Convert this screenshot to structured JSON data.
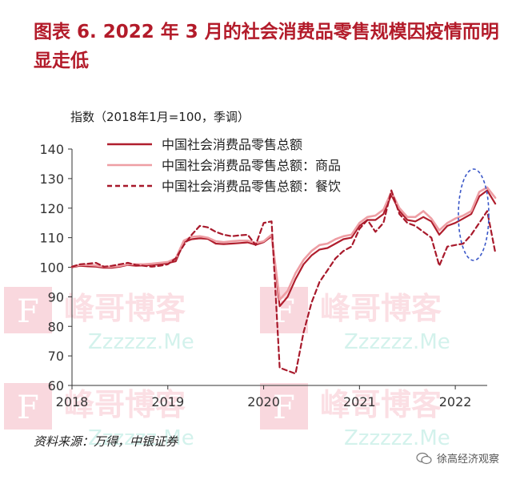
{
  "title": "图表 6.  2022 年 3 月的社会消费品零售规模因疫情而明显走低",
  "source": "资料来源：万得，中银证券",
  "footer": {
    "account": "徐高经济观察",
    "icon": "wechat-icon"
  },
  "colors": {
    "title": "#b31b2a",
    "total": "#b01e2d",
    "goods": "#ee9ea4",
    "catering": "#a8192b",
    "highlight": "#3a57c8"
  },
  "watermark": {
    "text": "峰哥博客",
    "sub": "Zzzzzz.Me",
    "letter": "F"
  },
  "chart_data": {
    "type": "line",
    "ylabel": "指数（2018年1月=100，季调）",
    "ylim": [
      60,
      140
    ],
    "yticks": [
      60,
      70,
      80,
      90,
      100,
      110,
      120,
      130,
      140
    ],
    "xlim": [
      2018.0,
      2022.333
    ],
    "xticks": [
      {
        "x": 2018.0,
        "label": "2018"
      },
      {
        "x": 2019.0,
        "label": "2019"
      },
      {
        "x": 2020.0,
        "label": "2020"
      },
      {
        "x": 2021.0,
        "label": "2021"
      },
      {
        "x": 2022.0,
        "label": "2022"
      }
    ],
    "grid": false,
    "legend_position": "top",
    "highlight": "dashed ellipse around 2022 Jan–Mar values",
    "series": [
      {
        "name": "中国社会消费品零售总额",
        "style": "solid",
        "color": "#b01e2d",
        "points": [
          [
            2018.0,
            100
          ],
          [
            2018.083,
            100.5
          ],
          [
            2018.167,
            100.3
          ],
          [
            2018.25,
            100.2
          ],
          [
            2018.333,
            99.8
          ],
          [
            2018.417,
            99.8
          ],
          [
            2018.5,
            100.2
          ],
          [
            2018.583,
            100.8
          ],
          [
            2018.667,
            100.5
          ],
          [
            2018.75,
            100.6
          ],
          [
            2018.833,
            100.8
          ],
          [
            2018.917,
            101
          ],
          [
            2019.0,
            101.4
          ],
          [
            2019.083,
            102
          ],
          [
            2019.167,
            108.5
          ],
          [
            2019.25,
            109.5
          ],
          [
            2019.333,
            109.8
          ],
          [
            2019.417,
            109.6
          ],
          [
            2019.5,
            108
          ],
          [
            2019.583,
            107.8
          ],
          [
            2019.667,
            108
          ],
          [
            2019.75,
            108.2
          ],
          [
            2019.833,
            108.4
          ],
          [
            2019.917,
            107.6
          ],
          [
            2020.0,
            108.5
          ],
          [
            2020.083,
            110.5
          ],
          [
            2020.167,
            86.8
          ],
          [
            2020.25,
            90
          ],
          [
            2020.333,
            96
          ],
          [
            2020.417,
            101
          ],
          [
            2020.5,
            104
          ],
          [
            2020.583,
            106
          ],
          [
            2020.667,
            106.5
          ],
          [
            2020.75,
            108
          ],
          [
            2020.833,
            109.5
          ],
          [
            2020.917,
            110
          ],
          [
            2021.0,
            114
          ],
          [
            2021.083,
            116
          ],
          [
            2021.167,
            116
          ],
          [
            2021.25,
            118
          ],
          [
            2021.333,
            124.5
          ],
          [
            2021.417,
            119
          ],
          [
            2021.5,
            116
          ],
          [
            2021.583,
            115.5
          ],
          [
            2021.667,
            117
          ],
          [
            2021.75,
            115.5
          ],
          [
            2021.833,
            111
          ],
          [
            2021.917,
            114
          ],
          [
            2022.0,
            115
          ],
          [
            2022.083,
            116.5
          ],
          [
            2022.167,
            118
          ],
          [
            2022.25,
            124
          ],
          [
            2022.333,
            126
          ],
          [
            2022.417,
            121.5
          ]
        ]
      },
      {
        "name": "中国社会消费品零售总额：商品",
        "style": "solid",
        "color": "#ee9ea4",
        "points": [
          [
            2018.0,
            100.2
          ],
          [
            2018.083,
            100.8
          ],
          [
            2018.167,
            100.8
          ],
          [
            2018.25,
            100.6
          ],
          [
            2018.333,
            100.2
          ],
          [
            2018.417,
            100.2
          ],
          [
            2018.5,
            100.5
          ],
          [
            2018.583,
            101
          ],
          [
            2018.667,
            101
          ],
          [
            2018.75,
            101
          ],
          [
            2018.833,
            101.2
          ],
          [
            2018.917,
            101.5
          ],
          [
            2019.0,
            101.8
          ],
          [
            2019.083,
            103
          ],
          [
            2019.167,
            109
          ],
          [
            2019.25,
            110.3
          ],
          [
            2019.333,
            110.5
          ],
          [
            2019.417,
            110
          ],
          [
            2019.5,
            108.8
          ],
          [
            2019.583,
            108.5
          ],
          [
            2019.667,
            108.8
          ],
          [
            2019.75,
            109
          ],
          [
            2019.833,
            109
          ],
          [
            2019.917,
            108.2
          ],
          [
            2020.0,
            108.8
          ],
          [
            2020.083,
            111
          ],
          [
            2020.167,
            89
          ],
          [
            2020.25,
            92
          ],
          [
            2020.333,
            98
          ],
          [
            2020.417,
            102.5
          ],
          [
            2020.5,
            105.5
          ],
          [
            2020.583,
            107.5
          ],
          [
            2020.667,
            108
          ],
          [
            2020.75,
            109.5
          ],
          [
            2020.833,
            110.5
          ],
          [
            2020.917,
            111
          ],
          [
            2021.0,
            115
          ],
          [
            2021.083,
            117
          ],
          [
            2021.167,
            117.5
          ],
          [
            2021.25,
            119.5
          ],
          [
            2021.333,
            125.5
          ],
          [
            2021.417,
            120
          ],
          [
            2021.5,
            117
          ],
          [
            2021.583,
            117
          ],
          [
            2021.667,
            119
          ],
          [
            2021.75,
            116.5
          ],
          [
            2021.833,
            112.5
          ],
          [
            2021.917,
            115
          ],
          [
            2022.0,
            116.5
          ],
          [
            2022.083,
            117.5
          ],
          [
            2022.167,
            119
          ],
          [
            2022.25,
            125.5
          ],
          [
            2022.333,
            127
          ],
          [
            2022.417,
            123.5
          ]
        ]
      },
      {
        "name": "中国社会消费品零售总额：餐饮",
        "style": "dashed",
        "color": "#a8192b",
        "points": [
          [
            2018.0,
            100.2
          ],
          [
            2018.083,
            101
          ],
          [
            2018.167,
            101.2
          ],
          [
            2018.25,
            101.5
          ],
          [
            2018.333,
            100.2
          ],
          [
            2018.417,
            100.5
          ],
          [
            2018.5,
            101
          ],
          [
            2018.583,
            101.5
          ],
          [
            2018.667,
            100.8
          ],
          [
            2018.75,
            100.5
          ],
          [
            2018.833,
            100.2
          ],
          [
            2018.917,
            100.5
          ],
          [
            2019.0,
            101
          ],
          [
            2019.083,
            103
          ],
          [
            2019.167,
            107.5
          ],
          [
            2019.25,
            111
          ],
          [
            2019.333,
            114
          ],
          [
            2019.417,
            113.5
          ],
          [
            2019.5,
            112
          ],
          [
            2019.583,
            111
          ],
          [
            2019.667,
            110.5
          ],
          [
            2019.75,
            110.8
          ],
          [
            2019.833,
            111
          ],
          [
            2019.917,
            107.5
          ],
          [
            2020.0,
            115
          ],
          [
            2020.083,
            115.5
          ],
          [
            2020.167,
            66
          ],
          [
            2020.25,
            65
          ],
          [
            2020.333,
            64
          ],
          [
            2020.417,
            78
          ],
          [
            2020.5,
            88
          ],
          [
            2020.583,
            95
          ],
          [
            2020.667,
            99
          ],
          [
            2020.75,
            103
          ],
          [
            2020.833,
            105.5
          ],
          [
            2020.917,
            107
          ],
          [
            2021.0,
            113
          ],
          [
            2021.083,
            116
          ],
          [
            2021.167,
            112
          ],
          [
            2021.25,
            115
          ],
          [
            2021.333,
            126
          ],
          [
            2021.417,
            118
          ],
          [
            2021.5,
            115
          ],
          [
            2021.583,
            114
          ],
          [
            2021.667,
            112
          ],
          [
            2021.75,
            110
          ],
          [
            2021.833,
            100.5
          ],
          [
            2021.917,
            107
          ],
          [
            2022.0,
            107.5
          ],
          [
            2022.083,
            108
          ],
          [
            2022.167,
            111
          ],
          [
            2022.25,
            115
          ],
          [
            2022.333,
            119
          ],
          [
            2022.417,
            105
          ]
        ]
      }
    ]
  }
}
